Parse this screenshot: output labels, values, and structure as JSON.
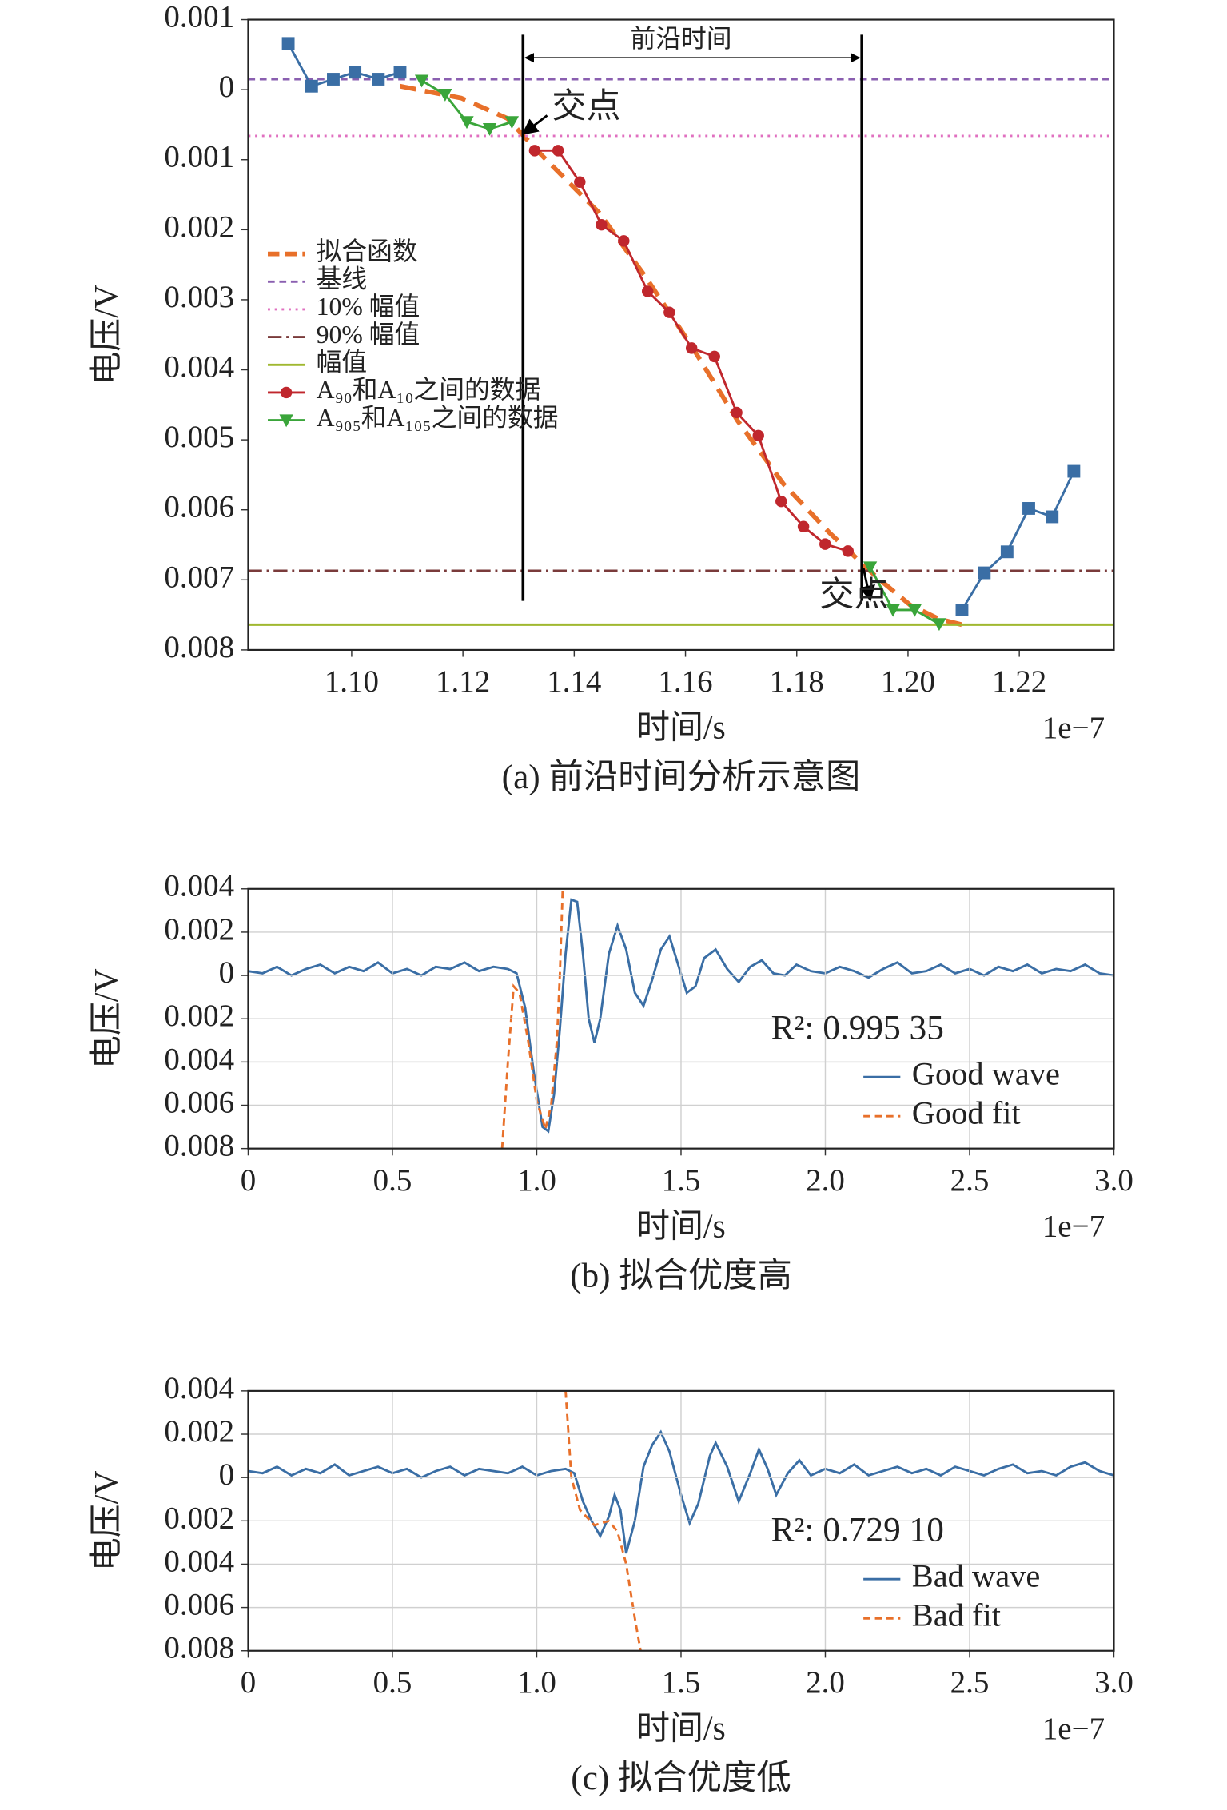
{
  "chart_data": [
    {
      "type": "line",
      "caption": "(a) 前沿时间分析示意图",
      "xlabel": "时间/s",
      "ylabel": "电压/V",
      "x_offset": "1e−7",
      "xlim": [
        1.0814,
        1.237
      ],
      "ylim": [
        -0.008,
        0.001
      ],
      "xticks": [
        {
          "value": 1.1,
          "label": "1.10"
        },
        1.12,
        1.14,
        1.16,
        1.18,
        {
          "value": 1.2,
          "label": "1.20"
        },
        1.22
      ],
      "yticks": [
        0.001,
        0,
        {
          "value": -0.001,
          "label": "0.001"
        },
        {
          "value": -0.002,
          "label": "0.002"
        },
        {
          "value": -0.003,
          "label": "0.003"
        },
        {
          "value": -0.004,
          "label": "0.004"
        },
        {
          "value": -0.005,
          "label": "0.005"
        },
        {
          "value": -0.006,
          "label": "0.006"
        },
        {
          "value": -0.007,
          "label": "0.007"
        },
        {
          "value": -0.008,
          "label": "0.008"
        }
      ],
      "grid": false,
      "legend": "upper left",
      "series": [
        {
          "name": "拟合函数",
          "color": "#e8702a",
          "dash": "dashed",
          "linewidth": 4,
          "x": [
            1.1087,
            1.1197,
            1.128,
            1.1342,
            1.1445,
            1.1528,
            1.1611,
            1.1694,
            1.1776,
            1.1859,
            1.1942,
            1.2004,
            1.2056,
            1.2097
          ],
          "values": [
            5e-05,
            -0.00012,
            -0.00041,
            -0.00094,
            -0.00176,
            -0.00267,
            -0.00366,
            -0.00473,
            -0.00563,
            -0.00633,
            -0.00695,
            -0.00736,
            -0.00756,
            -0.00764
          ]
        },
        {
          "name": "基线",
          "color": "#8a5fb0",
          "dash": "dashed",
          "linewidth": 2,
          "hline": 0.00015
        },
        {
          "name": "10% 幅值",
          "color": "#e070c0",
          "dash": "dotted",
          "linewidth": 2,
          "hline": -0.00066
        },
        {
          "name": "90% 幅值",
          "color": "#7a3b3b",
          "dash": "dashdot",
          "linewidth": 2,
          "hline": -0.00687
        },
        {
          "name": "幅值",
          "color": "#a0b830",
          "dash": "solid",
          "linewidth": 2,
          "hline": -0.00764
        },
        {
          "name": "A₉₀和A₁₀之间的数据",
          "color": "#c0272d",
          "dash": "solid",
          "linewidth": 2,
          "marker": "circle",
          "x": [
            1.1329,
            1.1371,
            1.141,
            1.1449,
            1.1489,
            1.1532,
            1.1571,
            1.1611,
            1.1652,
            1.1692,
            1.1731,
            1.1772,
            1.1812,
            1.1851,
            1.1892
          ],
          "values": [
            -0.00087,
            -0.00087,
            -0.00132,
            -0.00193,
            -0.00216,
            -0.00288,
            -0.00318,
            -0.00369,
            -0.00381,
            -0.00461,
            -0.00494,
            -0.00588,
            -0.00624,
            -0.00649,
            -0.00659
          ]
        },
        {
          "name": "A₉₀₅和A₁₀₅之间的数据",
          "color": "#3aa53a",
          "dash": "solid",
          "linewidth": 2,
          "marker": "triangle",
          "x": [
            1.1126,
            1.1168,
            1.1207,
            1.1248,
            1.1288,
            null,
            1.1932,
            1.1973,
            1.2012,
            1.2056
          ],
          "values": [
            0.00013,
            -7e-05,
            -0.00046,
            -0.00056,
            -0.00046,
            null,
            -0.00682,
            -0.00743,
            -0.00743,
            -0.00763
          ]
        },
        {
          "color": "#3a6ea5",
          "dash": "solid",
          "linewidth": 2,
          "marker": "square",
          "x": [
            1.0886,
            1.0928,
            1.0967,
            1.1006,
            1.1048,
            1.1087,
            null,
            1.2097,
            1.2137,
            1.2178,
            1.2217,
            1.2259,
            1.2298
          ],
          "values": [
            0.00066,
            5e-05,
            0.00015,
            0.00025,
            0.00015,
            0.00025,
            null,
            -0.00743,
            -0.0069,
            -0.0066,
            -0.00598,
            -0.0061,
            -0.00545
          ]
        }
      ],
      "vlines": [
        1.1308,
        1.1917
      ],
      "annotations": [
        "前沿时间",
        "交点",
        "交点"
      ]
    },
    {
      "type": "line",
      "caption": "(b) 拟合优度高",
      "xlabel": "时间/s",
      "ylabel": "电压/V",
      "x_offset": "1e−7",
      "xlim": [
        0,
        3
      ],
      "ylim": [
        -0.008,
        0.004
      ],
      "xticks": [
        0,
        0.5,
        {
          "value": 1,
          "label": "1.0"
        },
        1.5,
        {
          "value": 2,
          "label": "2.0"
        },
        2.5,
        {
          "value": 3,
          "label": "3.0"
        }
      ],
      "yticks": [
        0.004,
        0.002,
        0,
        {
          "value": -0.002,
          "label": "0.002"
        },
        {
          "value": -0.004,
          "label": "0.004"
        },
        {
          "value": -0.006,
          "label": "0.006"
        },
        {
          "value": -0.008,
          "label": "0.008"
        }
      ],
      "grid": true,
      "legend": "lower right",
      "series": [
        {
          "name": "Good wave",
          "color": "#3a6ea5",
          "dash": "solid",
          "linewidth": 2,
          "x": [
            0,
            0.05,
            0.1,
            0.15,
            0.2,
            0.25,
            0.3,
            0.35,
            0.4,
            0.45,
            0.5,
            0.55,
            0.6,
            0.65,
            0.7,
            0.75,
            0.8,
            0.85,
            0.9,
            0.93,
            0.96,
            0.99,
            1.02,
            1.04,
            1.06,
            1.08,
            1.1,
            1.12,
            1.14,
            1.16,
            1.18,
            1.2,
            1.22,
            1.25,
            1.28,
            1.31,
            1.34,
            1.37,
            1.4,
            1.43,
            1.46,
            1.49,
            1.52,
            1.55,
            1.58,
            1.62,
            1.66,
            1.7,
            1.74,
            1.78,
            1.82,
            1.86,
            1.9,
            1.95,
            2,
            2.05,
            2.1,
            2.15,
            2.2,
            2.25,
            2.3,
            2.35,
            2.4,
            2.45,
            2.5,
            2.55,
            2.6,
            2.65,
            2.7,
            2.75,
            2.8,
            2.85,
            2.9,
            2.95,
            3
          ],
          "values": [
            0.0002,
            0.0001,
            0.0004,
            0,
            0.0003,
            0.0005,
            0.0001,
            0.0004,
            0.0002,
            0.0006,
            0.0001,
            0.0003,
            0,
            0.0004,
            0.0003,
            0.0006,
            0.0002,
            0.0004,
            0.0003,
            0.0001,
            -0.0015,
            -0.0045,
            -0.007,
            -0.0072,
            -0.0055,
            -0.0025,
            0.001,
            0.0035,
            0.0034,
            0.001,
            -0.002,
            -0.0031,
            -0.002,
            0.001,
            0.0023,
            0.0012,
            -0.0008,
            -0.0014,
            -0.0002,
            0.0012,
            0.0018,
            0.0005,
            -0.0008,
            -0.0005,
            0.0008,
            0.0012,
            0.0003,
            -0.0003,
            0.0004,
            0.0007,
            0.0001,
            0,
            0.0005,
            0.0002,
            0.0001,
            0.0004,
            0.0002,
            -0.0001,
            0.0003,
            0.0006,
            0.0001,
            0.0002,
            0.0005,
            0.0001,
            0.0003,
            0,
            0.0004,
            0.0002,
            0.0005,
            0.0001,
            0.0003,
            0.0002,
            0.0005,
            0.0001,
            0
          ]
        },
        {
          "name": "Good fit",
          "color": "#e8702a",
          "dash": "dashed",
          "linewidth": 2,
          "x": [
            0.88,
            0.9,
            0.92,
            0.94,
            0.97,
            1,
            1.03,
            1.05,
            1.07,
            1.08,
            1.09
          ],
          "values": [
            -0.008,
            -0.004,
            -0.0005,
            -0.0008,
            -0.003,
            -0.0058,
            -0.0071,
            -0.006,
            -0.003,
            0,
            0.004
          ]
        }
      ],
      "annotations": [
        "R²: 0.995 35"
      ]
    },
    {
      "type": "line",
      "caption": "(c) 拟合优度低",
      "xlabel": "时间/s",
      "ylabel": "电压/V",
      "x_offset": "1e−7",
      "xlim": [
        0,
        3
      ],
      "ylim": [
        -0.008,
        0.004
      ],
      "xticks": [
        0,
        0.5,
        {
          "value": 1,
          "label": "1.0"
        },
        1.5,
        {
          "value": 2,
          "label": "2.0"
        },
        2.5,
        {
          "value": 3,
          "label": "3.0"
        }
      ],
      "yticks": [
        0.004,
        0.002,
        0,
        {
          "value": -0.002,
          "label": "0.002"
        },
        {
          "value": -0.004,
          "label": "0.004"
        },
        {
          "value": -0.006,
          "label": "0.006"
        },
        {
          "value": -0.008,
          "label": "0.008"
        }
      ],
      "grid": true,
      "legend": "lower right",
      "series": [
        {
          "name": "Bad wave",
          "color": "#3a6ea5",
          "dash": "solid",
          "linewidth": 2,
          "x": [
            0,
            0.05,
            0.1,
            0.15,
            0.2,
            0.25,
            0.3,
            0.35,
            0.4,
            0.45,
            0.5,
            0.55,
            0.6,
            0.65,
            0.7,
            0.75,
            0.8,
            0.85,
            0.9,
            0.95,
            1,
            1.05,
            1.1,
            1.13,
            1.16,
            1.19,
            1.22,
            1.25,
            1.27,
            1.29,
            1.31,
            1.34,
            1.37,
            1.4,
            1.43,
            1.46,
            1.5,
            1.53,
            1.56,
            1.6,
            1.62,
            1.66,
            1.7,
            1.74,
            1.77,
            1.8,
            1.83,
            1.87,
            1.91,
            1.95,
            2,
            2.05,
            2.1,
            2.15,
            2.2,
            2.25,
            2.3,
            2.35,
            2.4,
            2.45,
            2.5,
            2.55,
            2.6,
            2.65,
            2.7,
            2.75,
            2.8,
            2.85,
            2.9,
            2.95,
            3
          ],
          "values": [
            0.0003,
            0.0002,
            0.0005,
            0.0001,
            0.0004,
            0.0002,
            0.0006,
            0.0001,
            0.0003,
            0.0005,
            0.0002,
            0.0004,
            0,
            0.0003,
            0.0005,
            0.0001,
            0.0004,
            0.0003,
            0.0002,
            0.0005,
            0.0001,
            0.0003,
            0.0004,
            0.0002,
            -0.0011,
            -0.002,
            -0.0027,
            -0.0018,
            -0.0008,
            -0.0015,
            -0.0035,
            -0.002,
            0.0005,
            0.0015,
            0.0021,
            0.0012,
            -0.0008,
            -0.0021,
            -0.0012,
            0.001,
            0.0016,
            0.0005,
            -0.0011,
            0.0002,
            0.0013,
            0.0004,
            -0.0008,
            0.0002,
            0.0008,
            0.0001,
            0.0004,
            0.0002,
            0.0006,
            0.0001,
            0.0003,
            0.0005,
            0.0002,
            0.0004,
            0.0001,
            0.0005,
            0.0003,
            0.0001,
            0.0004,
            0.0006,
            0.0002,
            0.0003,
            0.0001,
            0.0005,
            0.0007,
            0.0003,
            0.0001
          ]
        },
        {
          "name": "Bad fit",
          "color": "#e8702a",
          "dash": "dashed",
          "linewidth": 2,
          "x": [
            1.1,
            1.12,
            1.15,
            1.2,
            1.25,
            1.28,
            1.31,
            1.34,
            1.36
          ],
          "values": [
            0.004,
            0,
            -0.0015,
            -0.0022,
            -0.002,
            -0.0025,
            -0.004,
            -0.0065,
            -0.008
          ]
        }
      ],
      "annotations": [
        "R²: 0.729 10"
      ]
    }
  ]
}
